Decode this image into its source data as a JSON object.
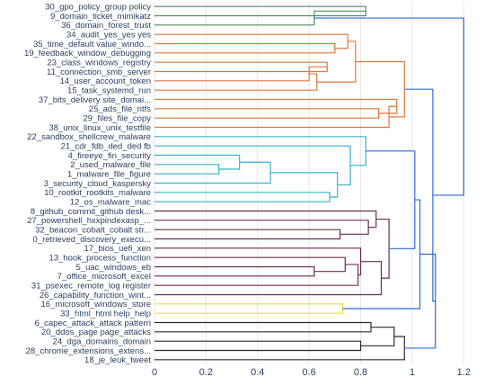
{
  "chart_data": {
    "type": "dendrogram",
    "orientation": "horizontal",
    "xlim": [
      0,
      1.3
    ],
    "x_ticks": [
      0,
      0.2,
      0.4,
      0.6,
      0.8,
      1,
      1.2
    ],
    "x_tick_labels": [
      "0",
      "0.2",
      "0.4",
      "0.6",
      "0.8",
      "1",
      "1.2"
    ],
    "grid": true,
    "title": "",
    "xlabel": "",
    "ylabel": "",
    "colors": {
      "green": "#4a8f5c",
      "orange": "#e0763c",
      "cyan": "#35b3c8",
      "purple": "#6e2a52",
      "yellow": "#e9dd3a",
      "black": "#2d2d2d",
      "blue": "#2f6ad8"
    },
    "leaves": [
      "30_gpo_policy_group policy",
      "9_domain_ticket_mimikatz",
      "36_domain_forest_trust",
      "34_audit_yes_yes yes",
      "35_time_default value_windo...",
      "19_feedback_window_debugging",
      "23_class_windows_registry",
      "11_connection_smb_server",
      "14_user_account_token",
      "15_task_systemd_run",
      "37_bits_delivery site_domai...",
      "25_ads_file_ntfs",
      "29_files_file_copy",
      "38_unix_linux_unix_testfile",
      "22_sandbox_shellcrew_malware",
      "21_cdr_fdb_ded_ded fb",
      "4_fireeye_fin_security",
      "2_used_malware_file",
      "1_malware_file_figure",
      "3_security_cloud_kaspersky",
      "10_rootkit_rootkits_malware",
      "12_os_malware_mac",
      "8_github_commit_github desk...",
      "27_powershell_hxxpindexasp_...",
      "32_beacon_cobalt_cobalt str...",
      "0_retrieved_discovery_execu...",
      "17_bios_uefi_xen",
      "13_hook_process_function",
      "5_uac_windows_eb",
      "7_office_microsoft_excel",
      "31_psexec_remote_log register",
      "26_capability_function_wint...",
      "16_microsoft_windows_store",
      "33_html_html help_help",
      "6_capec_attack_attack pattern",
      "20_ddos_page page_attacks",
      "24_dga_domains_domain",
      "28_chrome_extensions_extens...",
      "18_je_leuk_tweet"
    ],
    "links": [
      {
        "a": "L0",
        "b": "L1",
        "h": 0.82,
        "c": "green",
        "id": "A"
      },
      {
        "a": "A",
        "b": "L2",
        "h": 0.62,
        "c": "green",
        "id": "B"
      },
      {
        "a": "L4",
        "b": "L5",
        "h": 0.7,
        "c": "orange",
        "id": "C"
      },
      {
        "a": "L3",
        "b": "C",
        "h": 0.75,
        "c": "orange",
        "id": "D"
      },
      {
        "a": "L6",
        "b": "L7",
        "h": 0.67,
        "c": "orange",
        "id": "E"
      },
      {
        "a": "E",
        "b": "L8",
        "h": 0.6,
        "c": "orange",
        "id": "F"
      },
      {
        "a": "F",
        "b": "L9",
        "h": 0.63,
        "c": "orange",
        "id": "G"
      },
      {
        "a": "D",
        "b": "G",
        "h": 0.78,
        "c": "orange",
        "id": "H"
      },
      {
        "a": "L11",
        "b": "L12",
        "h": 0.87,
        "c": "orange",
        "id": "I"
      },
      {
        "a": "L10",
        "b": "I",
        "h": 0.94,
        "c": "orange",
        "id": "J"
      },
      {
        "a": "J",
        "b": "L13",
        "h": 0.91,
        "c": "orange",
        "id": "K"
      },
      {
        "a": "H",
        "b": "K",
        "h": 0.97,
        "c": "orange",
        "id": "M"
      },
      {
        "a": "L17",
        "b": "L18",
        "h": 0.25,
        "c": "cyan",
        "id": "N"
      },
      {
        "a": "L16",
        "b": "N",
        "h": 0.33,
        "c": "cyan",
        "id": "O"
      },
      {
        "a": "O",
        "b": "L19",
        "h": 0.45,
        "c": "cyan",
        "id": "P"
      },
      {
        "a": "L20",
        "b": "L21",
        "h": 0.68,
        "c": "cyan",
        "id": "Q"
      },
      {
        "a": "P",
        "b": "Q",
        "h": 0.71,
        "c": "cyan",
        "id": "R"
      },
      {
        "a": "L15",
        "b": "R",
        "h": 0.76,
        "c": "cyan",
        "id": "S"
      },
      {
        "a": "L14",
        "b": "S",
        "h": 0.82,
        "c": "cyan",
        "id": "T"
      },
      {
        "a": "L24",
        "b": "L25",
        "h": 0.72,
        "c": "purple",
        "id": "U"
      },
      {
        "a": "L23",
        "b": "U",
        "h": 0.83,
        "c": "purple",
        "id": "V"
      },
      {
        "a": "L22",
        "b": "V",
        "h": 0.86,
        "c": "purple",
        "id": "W"
      },
      {
        "a": "L28",
        "b": "L29",
        "h": 0.62,
        "c": "purple",
        "id": "X"
      },
      {
        "a": "L27",
        "b": "X",
        "h": 0.74,
        "c": "purple",
        "id": "Y"
      },
      {
        "a": "Y",
        "b": "L30",
        "h": 0.79,
        "c": "purple",
        "id": "Z"
      },
      {
        "a": "L26",
        "b": "Z",
        "h": 0.8,
        "c": "purple",
        "id": "AA"
      },
      {
        "a": "AA",
        "b": "L31",
        "h": 0.88,
        "c": "purple",
        "id": "AB"
      },
      {
        "a": "W",
        "b": "AB",
        "h": 0.91,
        "c": "purple",
        "id": "AC"
      },
      {
        "a": "L32",
        "b": "L33",
        "h": 0.73,
        "c": "yellow",
        "id": "AD"
      },
      {
        "a": "L34",
        "b": "L35",
        "h": 0.84,
        "c": "black",
        "id": "AE"
      },
      {
        "a": "L36",
        "b": "L37",
        "h": 0.8,
        "c": "black",
        "id": "AF"
      },
      {
        "a": "AE",
        "b": "AF",
        "h": 0.93,
        "c": "black",
        "id": "AG"
      },
      {
        "a": "AG",
        "b": "L38",
        "h": 0.97,
        "c": "black",
        "id": "AH"
      },
      {
        "a": "T",
        "b": "AC",
        "h": 1.01,
        "c": "blue",
        "id": "AI"
      },
      {
        "a": "AI",
        "b": "AD",
        "h": 1.03,
        "c": "blue",
        "id": "AJ"
      },
      {
        "a": "AJ",
        "b": "AH",
        "h": 1.09,
        "c": "blue",
        "id": "AK"
      },
      {
        "a": "M",
        "b": "AK",
        "h": 1.08,
        "c": "blue",
        "id": "AL"
      },
      {
        "a": "B",
        "b": "AL",
        "h": 1.2,
        "c": "blue",
        "id": "AM"
      }
    ]
  }
}
